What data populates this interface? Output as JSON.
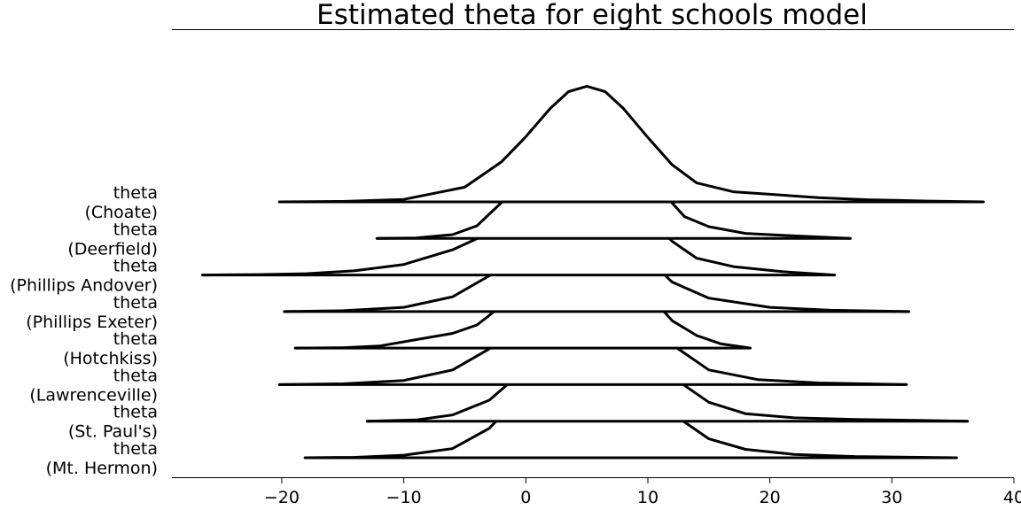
{
  "chart_data": {
    "type": "ridgeline",
    "title": "Estimated theta for eight schools model",
    "xlabel": "",
    "ylabel": "",
    "xlim": [
      -29,
      40
    ],
    "x_ticks": [
      -20,
      -10,
      0,
      10,
      20,
      30,
      40
    ],
    "x_tick_labels": [
      "−20",
      "−10",
      "0",
      "10",
      "20",
      "30",
      "40"
    ],
    "grid": false,
    "legend": "none",
    "line_color": "#000000",
    "series": [
      {
        "label_lines": [
          "theta",
          "(Choate)"
        ],
        "range": [
          -20.2,
          37.5
        ],
        "density": [
          [
            -20.2,
            0
          ],
          [
            -15,
            0.001
          ],
          [
            -10,
            0.006
          ],
          [
            -5,
            0.035
          ],
          [
            -2,
            0.095
          ],
          [
            0,
            0.155
          ],
          [
            2,
            0.222
          ],
          [
            3.5,
            0.262
          ],
          [
            5,
            0.275
          ],
          [
            6.5,
            0.262
          ],
          [
            8,
            0.222
          ],
          [
            10,
            0.153
          ],
          [
            12,
            0.088
          ],
          [
            14,
            0.045
          ],
          [
            17,
            0.024
          ],
          [
            20,
            0.018
          ],
          [
            24,
            0.01
          ],
          [
            28,
            0.005
          ],
          [
            33,
            0.002
          ],
          [
            37.5,
            0
          ]
        ]
      },
      {
        "label_lines": [
          "theta",
          "(Deerfield)"
        ],
        "range": [
          -12.2,
          26.6
        ],
        "density": [
          [
            -12.2,
            0
          ],
          [
            -9,
            0.001
          ],
          [
            -6,
            0.009
          ],
          [
            -4,
            0.03
          ],
          [
            -2,
            0.085
          ],
          [
            0,
            0.165
          ],
          [
            2,
            0.24
          ],
          [
            3.5,
            0.278
          ],
          [
            4.5,
            0.283
          ],
          [
            6,
            0.268
          ],
          [
            8,
            0.22
          ],
          [
            10,
            0.148
          ],
          [
            11.5,
            0.1
          ],
          [
            13,
            0.052
          ],
          [
            15,
            0.028
          ],
          [
            18,
            0.012
          ],
          [
            22,
            0.006
          ],
          [
            26.6,
            0
          ]
        ]
      },
      {
        "label_lines": [
          "theta",
          "(Phillips Andover)"
        ],
        "range": [
          -26.5,
          25.3
        ],
        "density": [
          [
            -26.5,
            0
          ],
          [
            -22,
            0.001
          ],
          [
            -18,
            0.003
          ],
          [
            -14,
            0.01
          ],
          [
            -10,
            0.025
          ],
          [
            -6,
            0.06
          ],
          [
            -3,
            0.1
          ],
          [
            0,
            0.165
          ],
          [
            2,
            0.215
          ],
          [
            3.5,
            0.24
          ],
          [
            4.5,
            0.245
          ],
          [
            6,
            0.234
          ],
          [
            8,
            0.195
          ],
          [
            10,
            0.135
          ],
          [
            12,
            0.08
          ],
          [
            14,
            0.04
          ],
          [
            17,
            0.02
          ],
          [
            21,
            0.008
          ],
          [
            25.3,
            0
          ]
        ]
      },
      {
        "label_lines": [
          "theta",
          "(Phillips Exeter)"
        ],
        "range": [
          -19.8,
          31.4
        ],
        "density": [
          [
            -19.8,
            0
          ],
          [
            -15,
            0.002
          ],
          [
            -10,
            0.01
          ],
          [
            -6,
            0.035
          ],
          [
            -3,
            0.085
          ],
          [
            0,
            0.152
          ],
          [
            2,
            0.21
          ],
          [
            3.5,
            0.24
          ],
          [
            4.5,
            0.247
          ],
          [
            6,
            0.235
          ],
          [
            8,
            0.19
          ],
          [
            10,
            0.125
          ],
          [
            12,
            0.07
          ],
          [
            15,
            0.032
          ],
          [
            20,
            0.01
          ],
          [
            25,
            0.003
          ],
          [
            31.4,
            0
          ]
        ]
      },
      {
        "label_lines": [
          "theta",
          "(Hotchkiss)"
        ],
        "range": [
          -18.9,
          18.4
        ],
        "density": [
          [
            -18.9,
            0
          ],
          [
            -15,
            0.001
          ],
          [
            -12,
            0.005
          ],
          [
            -9,
            0.02
          ],
          [
            -6,
            0.035
          ],
          [
            -4,
            0.055
          ],
          [
            -2,
            0.1
          ],
          [
            0,
            0.17
          ],
          [
            2,
            0.235
          ],
          [
            3.5,
            0.27
          ],
          [
            4.5,
            0.277
          ],
          [
            6,
            0.26
          ],
          [
            8,
            0.205
          ],
          [
            10,
            0.13
          ],
          [
            12,
            0.065
          ],
          [
            14,
            0.03
          ],
          [
            16,
            0.01
          ],
          [
            18.4,
            0
          ]
        ]
      },
      {
        "label_lines": [
          "theta",
          "(Lawrenceville)"
        ],
        "range": [
          -20.2,
          31.2
        ],
        "density": [
          [
            -20.2,
            0
          ],
          [
            -15,
            0.002
          ],
          [
            -10,
            0.01
          ],
          [
            -6,
            0.035
          ],
          [
            -3,
            0.085
          ],
          [
            0,
            0.155
          ],
          [
            2,
            0.21
          ],
          [
            3.5,
            0.24
          ],
          [
            5,
            0.25
          ],
          [
            6.5,
            0.24
          ],
          [
            8.5,
            0.2
          ],
          [
            10.5,
            0.14
          ],
          [
            12.5,
            0.085
          ],
          [
            15,
            0.035
          ],
          [
            19,
            0.012
          ],
          [
            24,
            0.004
          ],
          [
            31.2,
            0
          ]
        ]
      },
      {
        "label_lines": [
          "theta",
          "(St. Paul's)"
        ],
        "range": [
          -13,
          36.2
        ],
        "density": [
          [
            -13,
            0
          ],
          [
            -9,
            0.003
          ],
          [
            -6,
            0.015
          ],
          [
            -3,
            0.05
          ],
          [
            -1,
            0.1
          ],
          [
            1,
            0.17
          ],
          [
            3,
            0.225
          ],
          [
            4.5,
            0.25
          ],
          [
            5.5,
            0.255
          ],
          [
            7,
            0.244
          ],
          [
            9,
            0.2
          ],
          [
            11,
            0.14
          ],
          [
            13,
            0.085
          ],
          [
            15,
            0.045
          ],
          [
            18,
            0.018
          ],
          [
            22,
            0.008
          ],
          [
            27,
            0.004
          ],
          [
            32,
            0.002
          ],
          [
            36.2,
            0
          ]
        ]
      },
      {
        "label_lines": [
          "theta",
          "(Mt. Hermon)"
        ],
        "range": [
          -18.1,
          35.3
        ],
        "density": [
          [
            -18.1,
            0
          ],
          [
            -14,
            0.001
          ],
          [
            -10,
            0.006
          ],
          [
            -6,
            0.022
          ],
          [
            -3,
            0.07
          ],
          [
            -1,
            0.13
          ],
          [
            1,
            0.19
          ],
          [
            3,
            0.238
          ],
          [
            4.5,
            0.255
          ],
          [
            5.5,
            0.255
          ],
          [
            7,
            0.24
          ],
          [
            9,
            0.195
          ],
          [
            11,
            0.14
          ],
          [
            13,
            0.085
          ],
          [
            15,
            0.045
          ],
          [
            18,
            0.02
          ],
          [
            22,
            0.008
          ],
          [
            27,
            0.003
          ],
          [
            35.3,
            0
          ]
        ]
      }
    ]
  }
}
